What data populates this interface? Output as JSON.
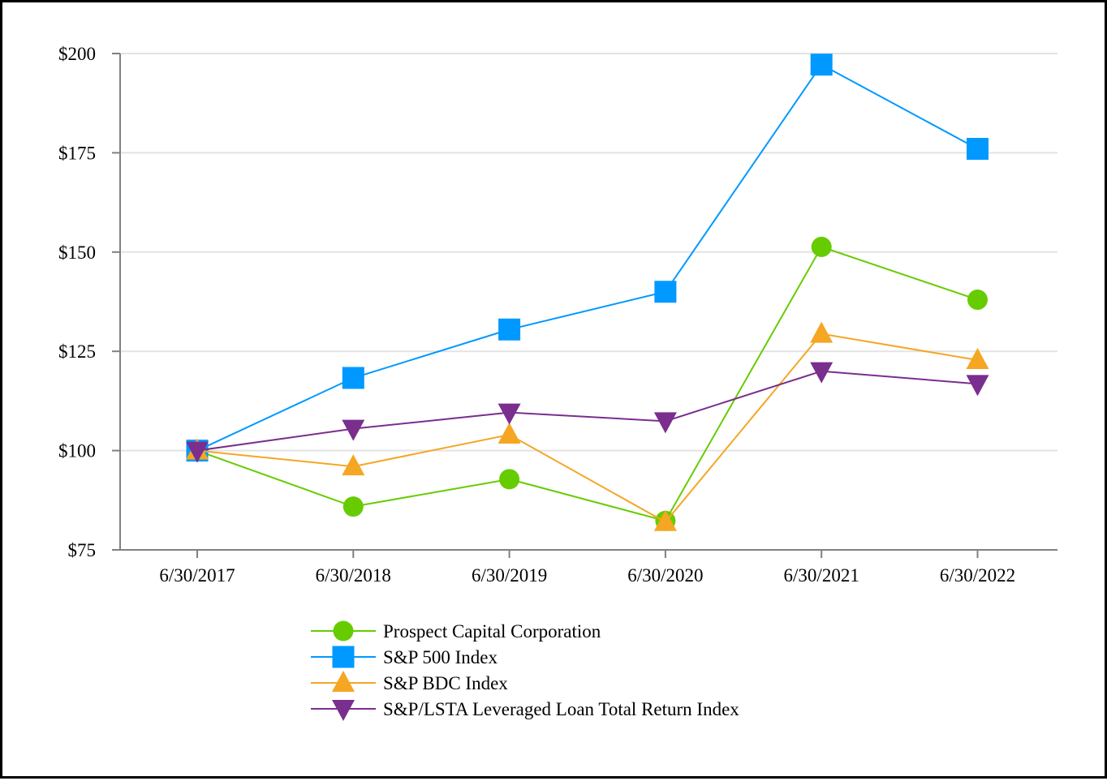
{
  "chart_data": {
    "type": "line",
    "title": "",
    "xlabel": "",
    "ylabel": "",
    "categories": [
      "6/30/2017",
      "6/30/2018",
      "6/30/2019",
      "6/30/2020",
      "6/30/2021",
      "6/30/2022"
    ],
    "ylim": [
      75,
      200
    ],
    "y_ticks": [
      75,
      100,
      125,
      150,
      175,
      200
    ],
    "y_tick_labels": [
      "$75",
      "$100",
      "$125",
      "$150",
      "$175",
      "$200"
    ],
    "grid": true,
    "legend_position": "bottom",
    "series": [
      {
        "name": "Prospect Capital Corporation",
        "color": "#66cc00",
        "marker": "circle",
        "values": [
          100,
          85.9,
          92.8,
          82.3,
          151.3,
          138.0
        ]
      },
      {
        "name": "S&P 500 Index",
        "color": "#0099ff",
        "marker": "square",
        "values": [
          100,
          118.3,
          130.5,
          140.0,
          197.2,
          176.0
        ]
      },
      {
        "name": "S&P BDC Index",
        "color": "#f5a623",
        "marker": "triangle-up",
        "values": [
          100,
          96.0,
          104.0,
          82.0,
          129.4,
          122.8
        ]
      },
      {
        "name": "S&P/LSTA Leveraged Loan Total Return Index",
        "color": "#7a2e8e",
        "marker": "triangle-down",
        "values": [
          100,
          105.5,
          109.6,
          107.4,
          120.0,
          116.8
        ]
      }
    ]
  }
}
